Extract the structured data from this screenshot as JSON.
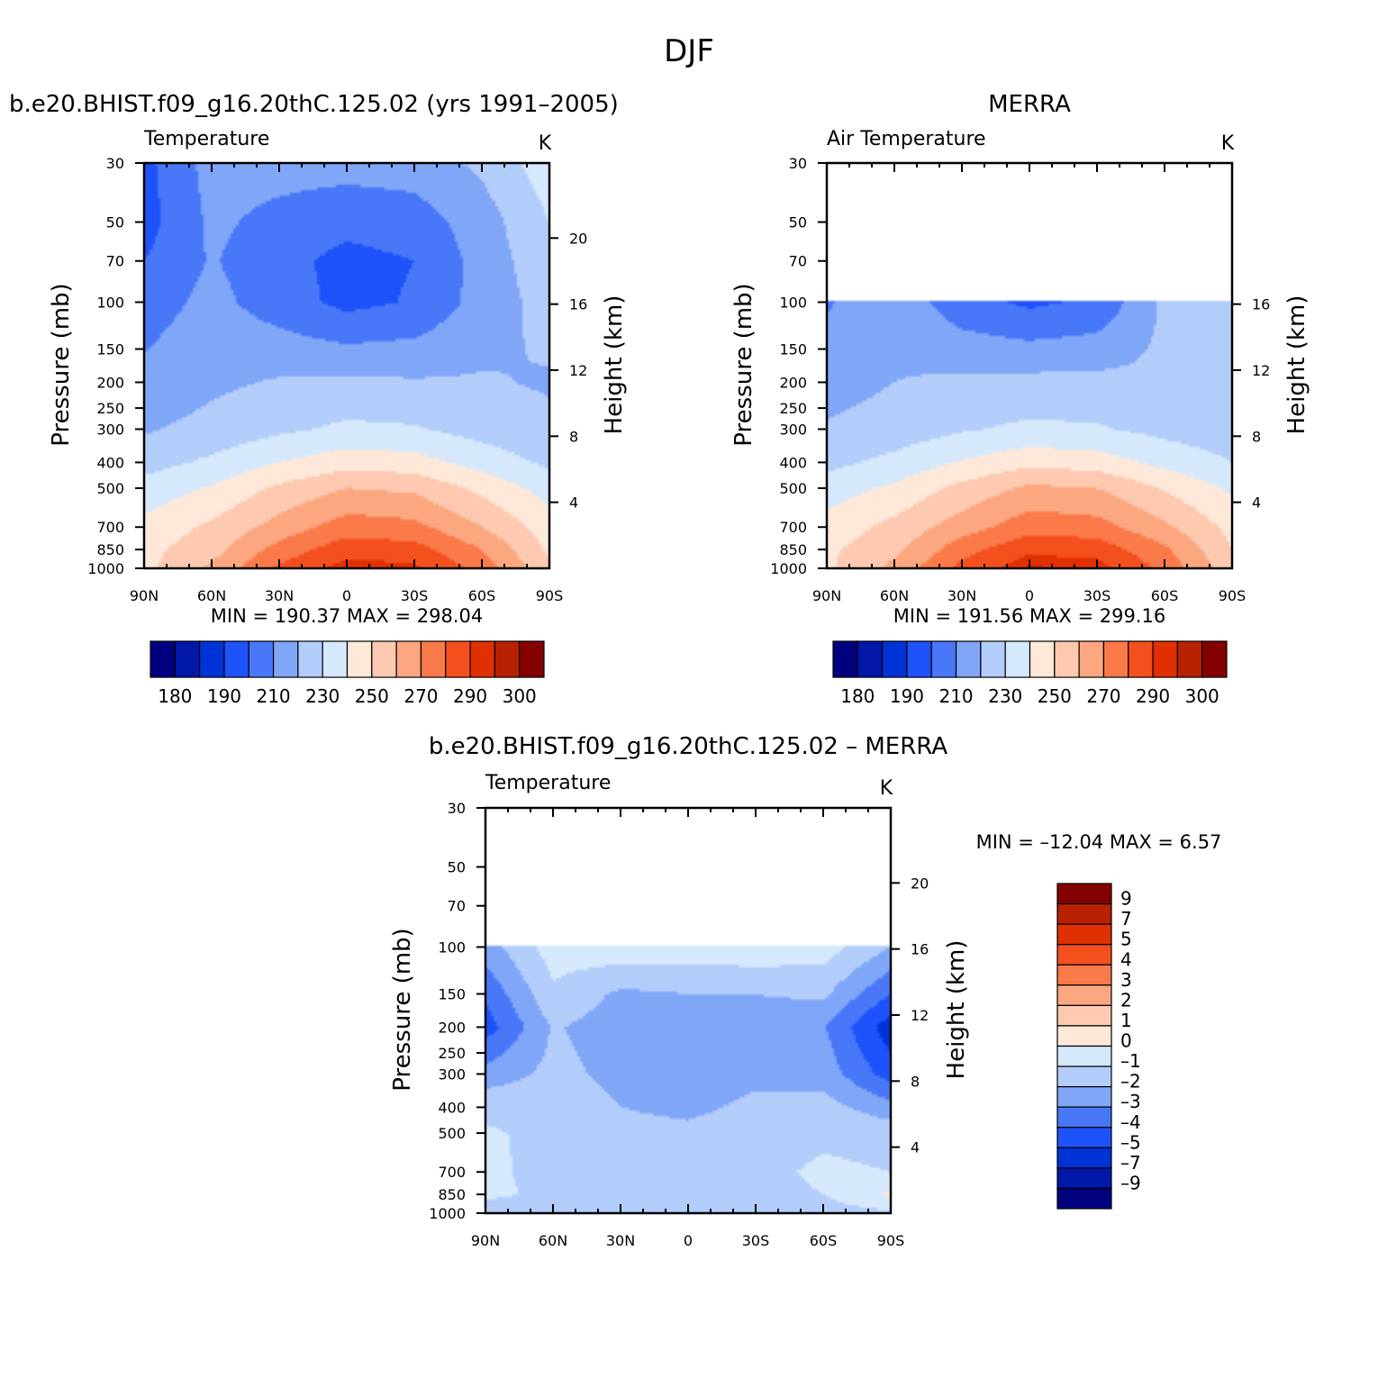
{
  "figure": {
    "title": "DJF"
  },
  "chart_data": [
    {
      "type": "heatmap",
      "panel_title": "b.e20.BHIST.f09_g16.20thC.125.02 (yrs 1991–2005)",
      "left_label": "Temperature",
      "units": "K",
      "ylabel": "Pressure (mb)",
      "y2label": "Height (km)",
      "xticks": [
        "90N",
        "60N",
        "30N",
        "0",
        "30S",
        "60S",
        "90S"
      ],
      "yticks": [
        "30",
        "50",
        "70",
        "100",
        "150",
        "200",
        "250",
        "300",
        "400",
        "500",
        "700",
        "850",
        "1000"
      ],
      "y2ticks": [
        "20",
        "16",
        "12",
        "8",
        "4"
      ],
      "stats": "MIN =  190.37   MAX =  298.04",
      "min": 190.37,
      "max": 298.04,
      "colorbar": {
        "levels": [
          180,
          185,
          190,
          200,
          210,
          220,
          230,
          240,
          250,
          260,
          270,
          280,
          290,
          295,
          300
        ],
        "labels": [
          "180",
          "190",
          "210",
          "230",
          "250",
          "270",
          "290",
          "300"
        ],
        "colors": [
          "#00007f",
          "#0017a8",
          "#0033d6",
          "#1e52fa",
          "#4878f8",
          "#80a6f8",
          "#b3cdfb",
          "#d6e8fb",
          "#fde8d9",
          "#fdc9b0",
          "#fca77f",
          "#fb7a49",
          "#f4501e",
          "#e03000",
          "#b82100",
          "#850000"
        ]
      },
      "x": [
        90,
        60,
        30,
        0,
        -30,
        -60,
        -90
      ],
      "y_pressure": [
        1000,
        850,
        700,
        500,
        400,
        300,
        200,
        100,
        70,
        50,
        30
      ],
      "z": [
        [
          247,
          262,
          282,
          294,
          292,
          276,
          252
        ],
        [
          247,
          256,
          274,
          286,
          284,
          270,
          248
        ],
        [
          243,
          252,
          264,
          275,
          273,
          260,
          245
        ],
        [
          234,
          241,
          252,
          260,
          258,
          247,
          236
        ],
        [
          226,
          232,
          240,
          246,
          244,
          236,
          228
        ],
        [
          219,
          223,
          228,
          232,
          231,
          226,
          222
        ],
        [
          213,
          218,
          221,
          222,
          221,
          221,
          219
        ],
        [
          205,
          213,
          205,
          197,
          201,
          214,
          224
        ],
        [
          200,
          211,
          203,
          197,
          200,
          214,
          227
        ],
        [
          196,
          212,
          207,
          203,
          205,
          215,
          230
        ],
        [
          197,
          214,
          214,
          214,
          215,
          222,
          236
        ]
      ]
    },
    {
      "type": "heatmap",
      "panel_title": "MERRA",
      "left_label": "Air Temperature",
      "units": "K",
      "ylabel": "Pressure (mb)",
      "y2label": "Height (km)",
      "xticks": [
        "90N",
        "60N",
        "30N",
        "0",
        "30S",
        "60S",
        "90S"
      ],
      "yticks": [
        "30",
        "50",
        "70",
        "100",
        "150",
        "200",
        "250",
        "300",
        "400",
        "500",
        "700",
        "850",
        "1000"
      ],
      "y2ticks": [
        "16",
        "12",
        "8",
        "4"
      ],
      "stats": "MIN =  191.56   MAX =  299.16",
      "min": 191.56,
      "max": 299.16,
      "data_top_pressure": 100,
      "colorbar": {
        "levels": [
          180,
          185,
          190,
          200,
          210,
          220,
          230,
          240,
          250,
          260,
          270,
          280,
          290,
          295,
          300
        ],
        "labels": [
          "180",
          "190",
          "210",
          "230",
          "250",
          "270",
          "290",
          "300"
        ],
        "colors": [
          "#00007f",
          "#0017a8",
          "#0033d6",
          "#1e52fa",
          "#4878f8",
          "#80a6f8",
          "#b3cdfb",
          "#d6e8fb",
          "#fde8d9",
          "#fdc9b0",
          "#fca77f",
          "#fb7a49",
          "#f4501e",
          "#e03000",
          "#b82100",
          "#850000"
        ]
      },
      "x": [
        90,
        60,
        30,
        0,
        -30,
        -60,
        -90
      ],
      "y_pressure": [
        1000,
        850,
        700,
        500,
        400,
        300,
        200,
        100
      ],
      "z": [
        [
          248,
          263,
          283,
          296,
          294,
          277,
          254
        ],
        [
          248,
          257,
          276,
          288,
          286,
          272,
          250
        ],
        [
          244,
          253,
          265,
          276,
          274,
          262,
          247
        ],
        [
          235,
          242,
          253,
          262,
          260,
          249,
          238
        ],
        [
          227,
          233,
          241,
          247,
          245,
          237,
          230
        ],
        [
          221,
          224,
          229,
          232,
          231,
          227,
          224
        ],
        [
          216,
          220,
          222,
          223,
          223,
          222,
          224
        ],
        [
          209,
          217,
          204,
          198,
          202,
          222,
          229
        ]
      ]
    },
    {
      "type": "heatmap",
      "panel_title": "b.e20.BHIST.f09_g16.20thC.125.02 – MERRA",
      "left_label": "Temperature",
      "units": "K",
      "ylabel": "Pressure (mb)",
      "y2label": "Height (km)",
      "xticks": [
        "90N",
        "60N",
        "30N",
        "0",
        "30S",
        "60S",
        "90S"
      ],
      "yticks": [
        "30",
        "50",
        "70",
        "100",
        "150",
        "200",
        "250",
        "300",
        "400",
        "500",
        "700",
        "850",
        "1000"
      ],
      "y2ticks": [
        "20",
        "16",
        "12",
        "8",
        "4"
      ],
      "stats": "MIN = –12.04   MAX =     6.57",
      "min": -12.04,
      "max": 6.57,
      "data_top_pressure": 100,
      "colorbar": {
        "levels": [
          -9,
          -7,
          -5,
          -4,
          -3,
          -2,
          -1,
          0,
          1,
          2,
          3,
          4,
          5,
          7,
          9
        ],
        "labels": [
          "9",
          "7",
          "5",
          "4",
          "3",
          "2",
          "1",
          "0",
          "–1",
          "–2",
          "–3",
          "–4",
          "–5",
          "–7",
          "–9"
        ],
        "colors": [
          "#00007f",
          "#0017a8",
          "#0033d6",
          "#1e52fa",
          "#4878f8",
          "#80a6f8",
          "#b3cdfb",
          "#d6e8fb",
          "#fde8d9",
          "#fdc9b0",
          "#fca77f",
          "#fb7a49",
          "#f4501e",
          "#e03000",
          "#b82100",
          "#850000"
        ]
      },
      "x": [
        90,
        60,
        30,
        0,
        -30,
        -60,
        -90
      ],
      "y_pressure": [
        1000,
        850,
        700,
        500,
        400,
        300,
        200,
        150,
        100
      ],
      "z": [
        [
          -1.5,
          -1.5,
          -1.5,
          -1.5,
          -1.5,
          -1.5,
          -1.2
        ],
        [
          -0.8,
          -1.2,
          -1.4,
          -1.4,
          -1.4,
          -1.0,
          0.2
        ],
        [
          -0.8,
          -1.3,
          -1.5,
          -1.5,
          -1.3,
          -0.8,
          -1.0
        ],
        [
          -0.9,
          -1.2,
          -1.7,
          -1.8,
          -1.6,
          -1.2,
          -1.4
        ],
        [
          -1.2,
          -1.4,
          -2.0,
          -2.2,
          -1.8,
          -1.6,
          -2.6
        ],
        [
          -2.6,
          -1.7,
          -2.3,
          -2.6,
          -2.2,
          -2.4,
          -4.5
        ],
        [
          -4.5,
          -1.9,
          -2.5,
          -2.8,
          -2.4,
          -2.9,
          -5.6
        ],
        [
          -3.8,
          -1.2,
          -2.2,
          -2.0,
          -2.0,
          -1.8,
          -4.0
        ],
        [
          -2.5,
          -0.5,
          -0.3,
          -0.4,
          -0.3,
          -0.5,
          -2.0
        ]
      ]
    }
  ]
}
